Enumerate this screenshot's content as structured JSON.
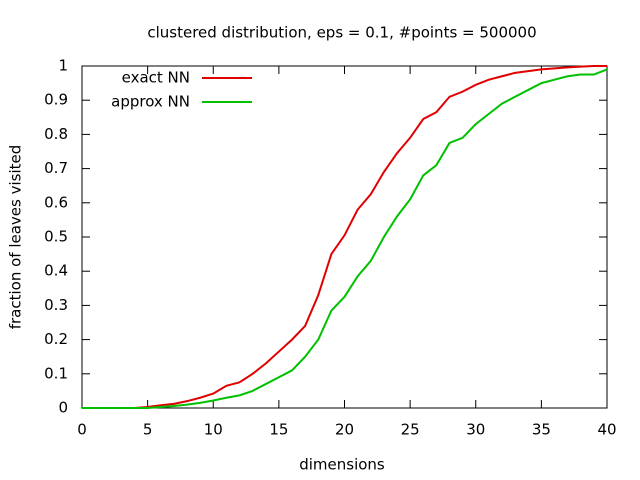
{
  "chart_data": {
    "type": "line",
    "title": "clustered distribution, eps = 0.1, #points = 500000",
    "xlabel": "dimensions",
    "ylabel": "fraction of leaves visited",
    "x": [
      0,
      1,
      2,
      3,
      4,
      5,
      6,
      7,
      8,
      9,
      10,
      11,
      12,
      13,
      14,
      15,
      16,
      17,
      18,
      19,
      20,
      21,
      22,
      23,
      24,
      25,
      26,
      27,
      28,
      29,
      30,
      31,
      32,
      33,
      34,
      35,
      36,
      37,
      38,
      39,
      40
    ],
    "series": [
      {
        "name": "exact NN",
        "color": "#e00000",
        "values": [
          0,
          0,
          0,
          0,
          0,
          0.003,
          0.008,
          0.012,
          0.02,
          0.03,
          0.042,
          0.065,
          0.075,
          0.1,
          0.13,
          0.165,
          0.2,
          0.24,
          0.33,
          0.45,
          0.505,
          0.58,
          0.625,
          0.69,
          0.745,
          0.79,
          0.845,
          0.865,
          0.91,
          0.925,
          0.945,
          0.96,
          0.97,
          0.98,
          0.985,
          0.99,
          0.993,
          0.996,
          0.998,
          1,
          1
        ]
      },
      {
        "name": "approx NN",
        "color": "#00c000",
        "values": [
          0,
          0,
          0,
          0,
          0,
          0,
          0.003,
          0.006,
          0.01,
          0.015,
          0.022,
          0.03,
          0.037,
          0.05,
          0.07,
          0.09,
          0.11,
          0.15,
          0.2,
          0.285,
          0.325,
          0.385,
          0.43,
          0.5,
          0.56,
          0.61,
          0.68,
          0.71,
          0.775,
          0.79,
          0.83,
          0.86,
          0.89,
          0.91,
          0.93,
          0.95,
          0.96,
          0.97,
          0.975,
          0.975,
          0.99
        ]
      }
    ],
    "xlim": [
      0,
      40
    ],
    "xticks": [
      0,
      5,
      10,
      15,
      20,
      25,
      30,
      35,
      40
    ],
    "ylim": [
      0,
      1
    ],
    "yticks": [
      0,
      0.1,
      0.2,
      0.3,
      0.4,
      0.5,
      0.6,
      0.7,
      0.8,
      0.9,
      1
    ],
    "legend": "top-left"
  }
}
